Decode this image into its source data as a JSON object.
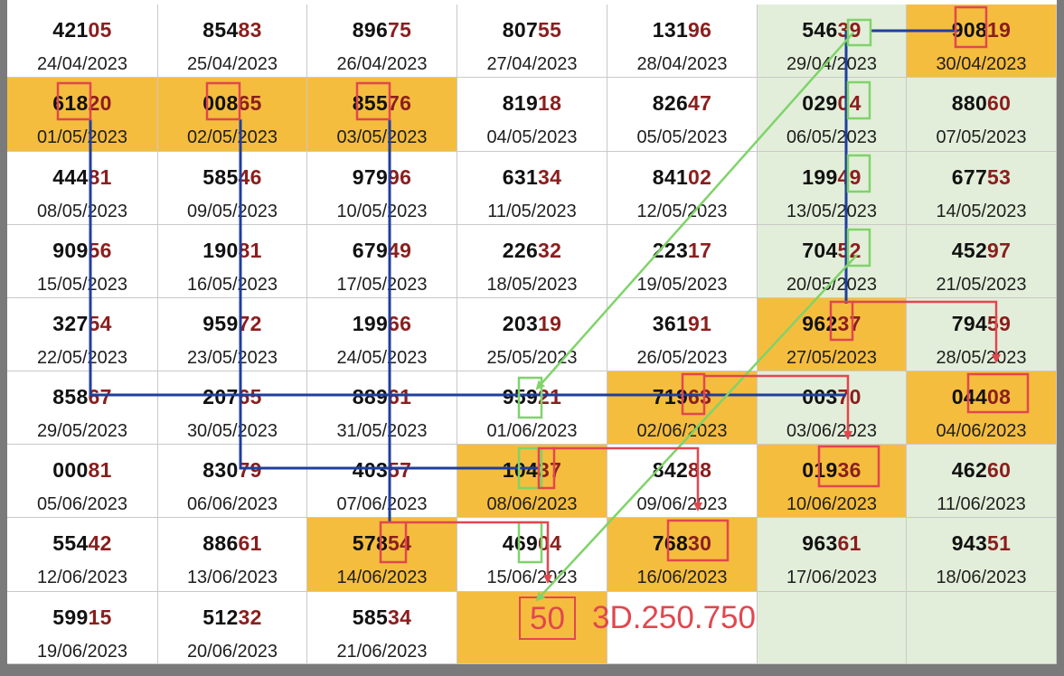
{
  "colors": {
    "orange": "#f5bd3e",
    "green_bg": "#e2eed9",
    "white": "#ffffff",
    "tail_red": "#8b1e1e",
    "red_line": "#e1474f",
    "green_line": "#7fd36a",
    "blue_line": "#1f3f9c"
  },
  "rows": [
    [
      {
        "head": "421",
        "tail": "05",
        "date": "24/04/2023",
        "bg": "white"
      },
      {
        "head": "854",
        "tail": "83",
        "date": "25/04/2023",
        "bg": "white"
      },
      {
        "head": "896",
        "tail": "75",
        "date": "26/04/2023",
        "bg": "white"
      },
      {
        "head": "807",
        "tail": "55",
        "date": "27/04/2023",
        "bg": "white"
      },
      {
        "head": "131",
        "tail": "96",
        "date": "28/04/2023",
        "bg": "white"
      },
      {
        "head": "546",
        "tail": "39",
        "date": "29/04/2023",
        "bg": "green"
      },
      {
        "head": "908",
        "tail": "19",
        "date": "30/04/2023",
        "bg": "orange"
      }
    ],
    [
      {
        "head": "618",
        "tail": "20",
        "date": "01/05/2023",
        "bg": "orange"
      },
      {
        "head": "008",
        "tail": "65",
        "date": "02/05/2023",
        "bg": "orange"
      },
      {
        "head": "855",
        "tail": "76",
        "date": "03/05/2023",
        "bg": "orange"
      },
      {
        "head": "819",
        "tail": "18",
        "date": "04/05/2023",
        "bg": "white"
      },
      {
        "head": "826",
        "tail": "47",
        "date": "05/05/2023",
        "bg": "white"
      },
      {
        "head": "029",
        "tail": "04",
        "date": "06/05/2023",
        "bg": "green"
      },
      {
        "head": "880",
        "tail": "60",
        "date": "07/05/2023",
        "bg": "green"
      }
    ],
    [
      {
        "head": "444",
        "tail": "81",
        "date": "08/05/2023",
        "bg": "white"
      },
      {
        "head": "585",
        "tail": "46",
        "date": "09/05/2023",
        "bg": "white"
      },
      {
        "head": "979",
        "tail": "96",
        "date": "10/05/2023",
        "bg": "white"
      },
      {
        "head": "631",
        "tail": "34",
        "date": "11/05/2023",
        "bg": "white"
      },
      {
        "head": "841",
        "tail": "02",
        "date": "12/05/2023",
        "bg": "white"
      },
      {
        "head": "199",
        "tail": "49",
        "date": "13/05/2023",
        "bg": "green"
      },
      {
        "head": "677",
        "tail": "53",
        "date": "14/05/2023",
        "bg": "green"
      }
    ],
    [
      {
        "head": "909",
        "tail": "56",
        "date": "15/05/2023",
        "bg": "white"
      },
      {
        "head": "190",
        "tail": "81",
        "date": "16/05/2023",
        "bg": "white"
      },
      {
        "head": "679",
        "tail": "49",
        "date": "17/05/2023",
        "bg": "white"
      },
      {
        "head": "226",
        "tail": "32",
        "date": "18/05/2023",
        "bg": "white"
      },
      {
        "head": "223",
        "tail": "17",
        "date": "19/05/2023",
        "bg": "white"
      },
      {
        "head": "704",
        "tail": "52",
        "date": "20/05/2023",
        "bg": "green"
      },
      {
        "head": "452",
        "tail": "97",
        "date": "21/05/2023",
        "bg": "green"
      }
    ],
    [
      {
        "head": "327",
        "tail": "54",
        "date": "22/05/2023",
        "bg": "white"
      },
      {
        "head": "959",
        "tail": "72",
        "date": "23/05/2023",
        "bg": "white"
      },
      {
        "head": "199",
        "tail": "66",
        "date": "24/05/2023",
        "bg": "white"
      },
      {
        "head": "203",
        "tail": "19",
        "date": "25/05/2023",
        "bg": "white"
      },
      {
        "head": "361",
        "tail": "91",
        "date": "26/05/2023",
        "bg": "white"
      },
      {
        "head": "962",
        "tail": "37",
        "date": "27/05/2023",
        "bg": "orange"
      },
      {
        "head": "794",
        "tail": "59",
        "date": "28/05/2023",
        "bg": "green"
      }
    ],
    [
      {
        "head": "858",
        "tail": "67",
        "date": "29/05/2023",
        "bg": "white"
      },
      {
        "head": "207",
        "tail": "65",
        "date": "30/05/2023",
        "bg": "white"
      },
      {
        "head": "889",
        "tail": "61",
        "date": "31/05/2023",
        "bg": "white"
      },
      {
        "head": "959",
        "tail": "21",
        "date": "01/06/2023",
        "bg": "white"
      },
      {
        "head": "719",
        "tail": "63",
        "date": "02/06/2023",
        "bg": "orange"
      },
      {
        "head": "003",
        "tail": "70",
        "date": "03/06/2023",
        "bg": "green"
      },
      {
        "head": "044",
        "tail": "08",
        "date": "04/06/2023",
        "bg": "orange"
      }
    ],
    [
      {
        "head": "000",
        "tail": "81",
        "date": "05/06/2023",
        "bg": "white"
      },
      {
        "head": "830",
        "tail": "79",
        "date": "06/06/2023",
        "bg": "white"
      },
      {
        "head": "403",
        "tail": "57",
        "date": "07/06/2023",
        "bg": "white"
      },
      {
        "head": "104",
        "tail": "37",
        "date": "08/06/2023",
        "bg": "orange"
      },
      {
        "head": "842",
        "tail": "88",
        "date": "09/06/2023",
        "bg": "white"
      },
      {
        "head": "019",
        "tail": "36",
        "date": "10/06/2023",
        "bg": "orange"
      },
      {
        "head": "462",
        "tail": "60",
        "date": "11/06/2023",
        "bg": "green"
      }
    ],
    [
      {
        "head": "554",
        "tail": "42",
        "date": "12/06/2023",
        "bg": "white"
      },
      {
        "head": "886",
        "tail": "61",
        "date": "13/06/2023",
        "bg": "white"
      },
      {
        "head": "578",
        "tail": "54",
        "date": "14/06/2023",
        "bg": "orange"
      },
      {
        "head": "469",
        "tail": "04",
        "date": "15/06/2023",
        "bg": "white"
      },
      {
        "head": "768",
        "tail": "30",
        "date": "16/06/2023",
        "bg": "orange"
      },
      {
        "head": "963",
        "tail": "61",
        "date": "17/06/2023",
        "bg": "green"
      },
      {
        "head": "943",
        "tail": "51",
        "date": "18/06/2023",
        "bg": "green"
      }
    ],
    [
      {
        "head": "599",
        "tail": "15",
        "date": "19/06/2023",
        "bg": "white"
      },
      {
        "head": "512",
        "tail": "32",
        "date": "20/06/2023",
        "bg": "white"
      },
      {
        "head": "585",
        "tail": "34",
        "date": "21/06/2023",
        "bg": "white"
      },
      {
        "head": "",
        "tail": "",
        "date": "",
        "bg": "orange"
      },
      {
        "head": "",
        "tail": "",
        "date": "",
        "bg": "white"
      },
      {
        "head": "",
        "tail": "",
        "date": "",
        "bg": "green"
      },
      {
        "head": "",
        "tail": "",
        "date": "",
        "bg": "green"
      }
    ]
  ],
  "result": {
    "highlight": "50",
    "text": "3D.250.750"
  }
}
